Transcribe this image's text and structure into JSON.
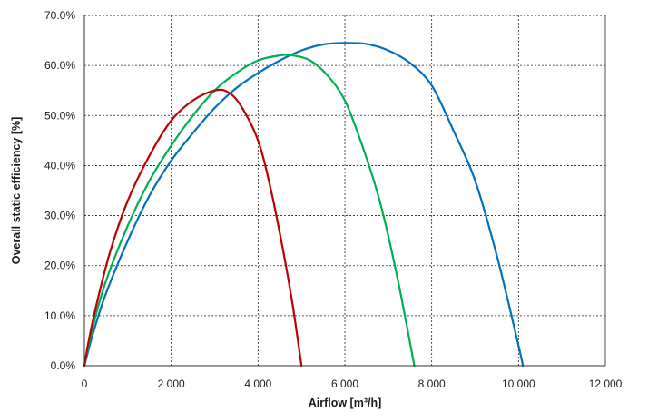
{
  "chart_data": {
    "type": "line",
    "title": "",
    "xlabel": "Airflow [m³/h]",
    "ylabel": "Overall static efficiency [%]",
    "xlim": [
      0,
      12000
    ],
    "ylim": [
      0,
      70
    ],
    "x_ticks": [
      0,
      2000,
      4000,
      6000,
      8000,
      10000,
      12000
    ],
    "x_tick_labels": [
      "0",
      "2 000",
      "4 000",
      "6 000",
      "8 000",
      "10 000",
      "12 000"
    ],
    "y_ticks": [
      0,
      10,
      20,
      30,
      40,
      50,
      60,
      70
    ],
    "y_tick_labels": [
      "0.0%",
      "10.0%",
      "20.0%",
      "30.0%",
      "40.0%",
      "50.0%",
      "60.0%",
      "70.0%"
    ],
    "grid": true,
    "legend": "none",
    "series": [
      {
        "color": "#c00000",
        "x": [
          0,
          100,
          300,
          600,
          1000,
          1500,
          2000,
          2500,
          3000,
          3300,
          3600,
          4000,
          4300,
          4600,
          4800,
          5000
        ],
        "y": [
          0,
          5,
          13,
          23,
          33,
          42,
          49,
          53,
          55,
          54.7,
          52,
          45,
          35,
          22,
          12,
          0
        ]
      },
      {
        "color": "#00b050",
        "x": [
          0,
          200,
          500,
          1000,
          1500,
          2000,
          2500,
          3000,
          3500,
          4000,
          4500,
          4800,
          5200,
          5600,
          6000,
          6400,
          6800,
          7200,
          7600
        ],
        "y": [
          0,
          8,
          17,
          28,
          37,
          44,
          50,
          55,
          58.5,
          61,
          62,
          62,
          61,
          58,
          53,
          44,
          33,
          18,
          0
        ]
      },
      {
        "color": "#0070c0",
        "x": [
          0,
          200,
          500,
          1000,
          1500,
          2000,
          2500,
          3000,
          3500,
          4000,
          4500,
          5000,
          5500,
          6000,
          6500,
          7000,
          7500,
          8000,
          8500,
          9000,
          9500,
          10000,
          10100
        ],
        "y": [
          0,
          6.5,
          14.5,
          25,
          34,
          41,
          46.5,
          51.5,
          55.5,
          58.5,
          61,
          63,
          64.2,
          64.5,
          64.3,
          63,
          60.5,
          56,
          47,
          37,
          22,
          4,
          0
        ]
      }
    ]
  }
}
